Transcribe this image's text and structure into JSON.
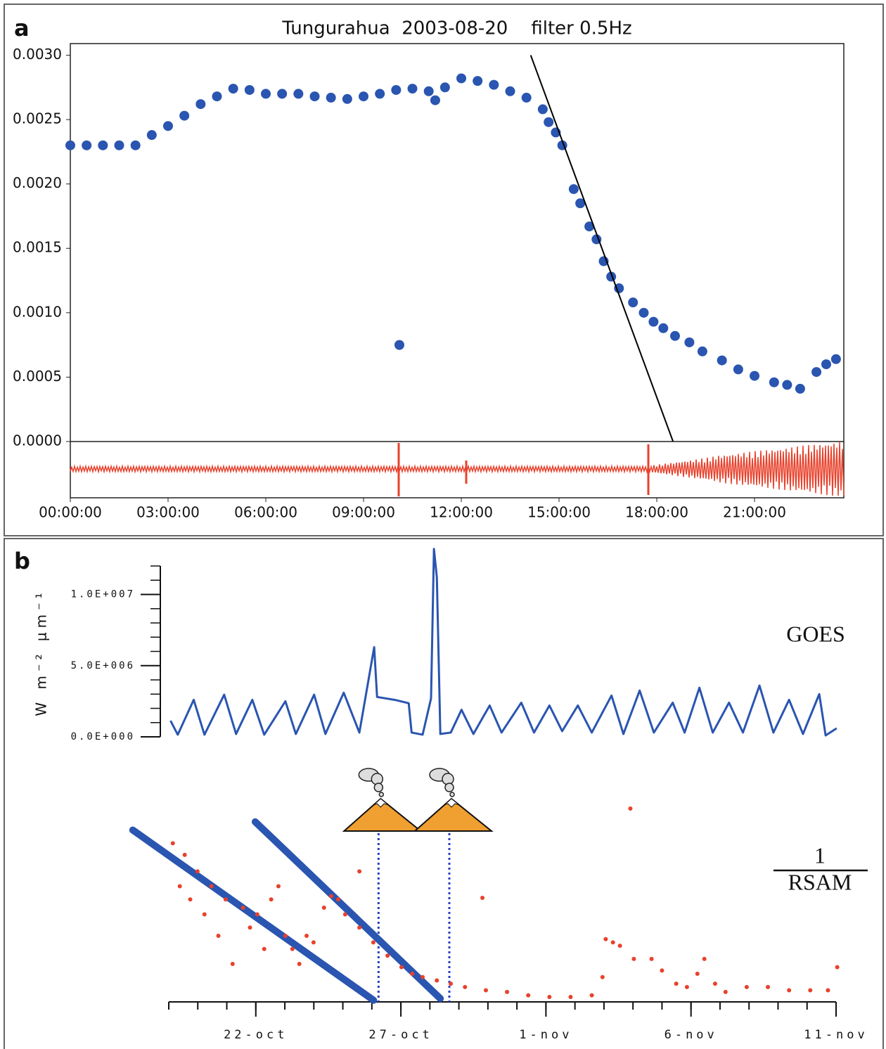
{
  "chart_data": [
    {
      "type": "scatter",
      "panel": "a",
      "title": "Tungurahua  2003-08-20    filter 0.5Hz",
      "color": "#2a55b0",
      "x": [
        0,
        0.5,
        1,
        1.5,
        2,
        2.5,
        3,
        3.5,
        4,
        4.5,
        5,
        5.5,
        6,
        6.5,
        7,
        7.5,
        8,
        8.5,
        9,
        9.5,
        10,
        10.1,
        10.5,
        11,
        11.2,
        11.5,
        12,
        12.5,
        13,
        13.5,
        14,
        14.5,
        14.68,
        14.9,
        15.1,
        15.45,
        15.65,
        15.93,
        16.15,
        16.37,
        16.6,
        16.84,
        17.27,
        17.6,
        17.9,
        18.2,
        18.56,
        19,
        19.4,
        20,
        20.5,
        21,
        21.6,
        22,
        22.4,
        22.9,
        23.2,
        23.5
      ],
      "y": [
        0.0023,
        0.0023,
        0.0023,
        0.0023,
        0.0023,
        0.00238,
        0.00245,
        0.00253,
        0.00262,
        0.00268,
        0.00274,
        0.00273,
        0.0027,
        0.0027,
        0.0027,
        0.00268,
        0.00267,
        0.00266,
        0.00268,
        0.0027,
        0.00273,
        0.00075,
        0.00274,
        0.00272,
        0.00265,
        0.00275,
        0.00282,
        0.0028,
        0.00277,
        0.00272,
        0.00267,
        0.00258,
        0.00248,
        0.0024,
        0.0023,
        0.00196,
        0.00185,
        0.00167,
        0.00157,
        0.0014,
        0.00128,
        0.00119,
        0.00108,
        0.001,
        0.00093,
        0.00088,
        0.00082,
        0.00077,
        0.0007,
        0.00063,
        0.00056,
        0.00051,
        0.00046,
        0.00044,
        0.00041,
        0.00054,
        0.0006,
        0.00064
      ],
      "fit_line": {
        "x": [
          14.13,
          18.5
        ],
        "y": [
          0.003,
          0
        ],
        "color": "#000000"
      },
      "xlim": [
        0,
        23.74
      ],
      "ylim": [
        0,
        0.00309
      ],
      "xticks": [
        {
          "value": 0,
          "label": "00:00:00"
        },
        {
          "value": 3,
          "label": "03:00:00"
        },
        {
          "value": 6,
          "label": "06:00:00"
        },
        {
          "value": 9,
          "label": "09:00:00"
        },
        {
          "value": 12,
          "label": "12:00:00"
        },
        {
          "value": 15,
          "label": "15:00:00"
        },
        {
          "value": 18,
          "label": "18:00:00"
        },
        {
          "value": 21,
          "label": "21:00:00"
        }
      ],
      "yticks": [
        {
          "value": 0,
          "label": "0.0000"
        },
        0.0005,
        {
          "value": 0.001,
          "label": "0.0010"
        },
        0.0015,
        {
          "value": 0.002,
          "label": "0.0020"
        },
        0.0025,
        {
          "value": 0.003,
          "label": "0.0030"
        }
      ]
    },
    {
      "type": "line",
      "panel": "b",
      "ylabel": "W m⁻² μm⁻¹",
      "series": [
        {
          "name": "GOES",
          "type": "line",
          "color": "#2a55b0",
          "x": [
            0.06,
            0.31,
            0.86,
            1.23,
            1.91,
            2.32,
            2.88,
            3.29,
            4.02,
            4.38,
            5.01,
            5.4,
            6.03,
            6.57,
            7.08,
            7.18,
            7.78,
            8.27,
            8.37,
            8.75,
            9.04,
            9.14,
            9.24,
            9.36,
            9.72,
            10.09,
            10.5,
            11.06,
            11.47,
            12.15,
            12.59,
            13.12,
            13.56,
            14.1,
            14.58,
            15.26,
            15.67,
            16.23,
            16.72,
            17.37,
            17.78,
            18.29,
            18.75,
            19.31,
            19.79,
            20.36,
            20.84,
            21.38,
            21.86,
            22.42,
            22.64,
            23.02
          ],
          "values": [
            1130000,
            150000,
            2600000,
            150000,
            2960000,
            200000,
            2600000,
            150000,
            2500000,
            200000,
            2960000,
            200000,
            3100000,
            300000,
            6300000,
            2800000,
            2600000,
            2360000,
            300000,
            150000,
            2700000,
            13200000,
            11200000,
            200000,
            300000,
            1900000,
            200000,
            2200000,
            300000,
            2400000,
            300000,
            2200000,
            400000,
            2200000,
            300000,
            2900000,
            200000,
            3250000,
            300000,
            2400000,
            300000,
            3450000,
            300000,
            2400000,
            300000,
            3600000,
            300000,
            2600000,
            200000,
            3000000,
            100000,
            600000
          ]
        },
        {
          "name": "RSAM",
          "name_top": "1",
          "type": "scatter",
          "axis": "y2",
          "color": "#e8412c",
          "x": [
            0.14,
            0.38,
            0.55,
            0.74,
            0.99,
            1.23,
            1.47,
            1.71,
            1.96,
            2.2,
            2.56,
            2.8,
            3.05,
            3.29,
            3.53,
            3.78,
            4.02,
            4.26,
            4.5,
            4.75,
            4.99,
            5.35,
            5.6,
            5.84,
            6.08,
            6.57,
            6.57,
            7.05,
            7.54,
            8.02,
            8.39,
            8.75,
            9.24,
            9.72,
            10.21,
            10.81,
            10.93,
            11.66,
            12.39,
            13.12,
            13.85,
            14.58,
            14.95,
            15.06,
            15.31,
            15.55,
            15.91,
            16.03,
            16.64,
            17,
            17.49,
            17.86,
            18.22,
            18.46,
            18.83,
            19.19,
            19.92,
            20.65,
            21.38,
            22.11,
            22.72,
            23.04
          ],
          "values": [
            0.96,
            0.7,
            0.89,
            0.62,
            0.79,
            0.53,
            0.7,
            0.4,
            0.62,
            0.23,
            0.57,
            0.45,
            0.53,
            0.32,
            0.62,
            0.7,
            0.4,
            0.32,
            0.23,
            0.4,
            0.36,
            0.57,
            0.64,
            0.62,
            0.53,
            0.79,
            0.45,
            0.36,
            0.28,
            0.21,
            0.17,
            0.15,
            0.13,
            0.11,
            0.09,
            0.63,
            0.07,
            0.06,
            0.04,
            0.03,
            0.03,
            0.04,
            0.15,
            0.38,
            0.36,
            0.34,
            1.17,
            0.26,
            0.26,
            0.19,
            0.11,
            0.09,
            0.17,
            0.26,
            0.11,
            0.06,
            0.09,
            0.09,
            0.07,
            0.07,
            0.07,
            0.21
          ]
        }
      ],
      "fit_lines": [
        {
          "x": [
            -1.24,
            7.06
          ],
          "y": [
            1.04,
            0.01
          ],
          "color": "#2a55b0"
        },
        {
          "x": [
            2.98,
            9.36
          ],
          "y": [
            1.09,
            0.02
          ],
          "color": "#2a55b0"
        }
      ],
      "eruptions": [
        7.23,
        9.67
      ],
      "xlim": [
        0,
        23
      ],
      "ylim": [
        0,
        12000000
      ],
      "y2lim": [
        0,
        1.2
      ],
      "xticks": [
        {
          "value": 3,
          "label": "22-oct"
        },
        {
          "value": 8,
          "label": "27-oct"
        },
        {
          "value": 13,
          "label": "1-nov"
        },
        {
          "value": 18,
          "label": "6-nov"
        },
        {
          "value": 23,
          "label": "11-nov"
        }
      ],
      "xticks_minor": [
        0,
        1,
        2,
        3,
        4,
        5,
        6,
        7,
        8,
        9,
        10,
        11,
        12,
        13,
        14,
        15,
        16,
        17,
        18,
        19,
        20,
        21,
        22,
        23
      ],
      "yticks": [
        {
          "value": 0,
          "label": "0.0E+000"
        },
        {
          "value": 5000000,
          "label": "5.0E+006"
        },
        {
          "value": 10000000,
          "label": "1.0E+007"
        }
      ],
      "yticks_minor": [
        0,
        1000000,
        2000000,
        3000000,
        4000000,
        5000000,
        6000000,
        7000000,
        8000000,
        9000000,
        10000000,
        11000000,
        12000000
      ]
    }
  ]
}
